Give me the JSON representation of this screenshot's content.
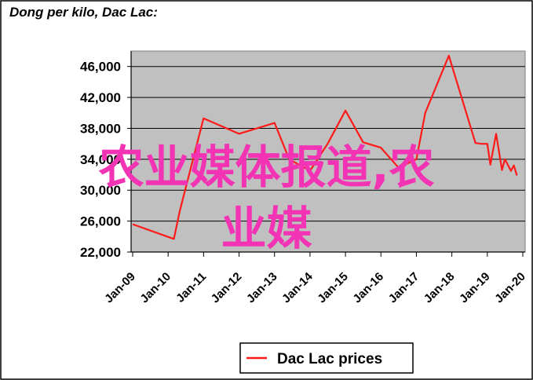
{
  "title": "Dong per kilo, Dac Lac:",
  "overlay": {
    "line1": "农业媒体报道,农",
    "line2": "业媒"
  },
  "chart_data": {
    "type": "line",
    "title": "Dong per kilo, Dac Lac:",
    "xlabel": "",
    "ylabel": "",
    "ylim": [
      22000,
      48000
    ],
    "y_ticks": [
      "22,000",
      "26,000",
      "30,000",
      "34,000",
      "38,000",
      "42,000",
      "46,000"
    ],
    "y_tick_values": [
      22000,
      26000,
      30000,
      34000,
      38000,
      42000,
      46000
    ],
    "x_ticks": [
      "Jan-09",
      "Jan-10",
      "Jan-11",
      "Jan-12",
      "Jan-13",
      "Jan-14",
      "Jan-15",
      "Jan-16",
      "Jan-17",
      "Jan-18",
      "Jan-19",
      "Jan-20"
    ],
    "legend_position": "bottom",
    "grid": true,
    "series": [
      {
        "name": "Dac Lac prices",
        "color": "#ff1a1a",
        "points": [
          [
            "2009-01-01",
            25600
          ],
          [
            "2010-03-01",
            23700
          ],
          [
            "2010-05-01",
            27300
          ],
          [
            "2011-01-01",
            39300
          ],
          [
            "2012-01-01",
            37300
          ],
          [
            "2013-01-01",
            38700
          ],
          [
            "2013-06-01",
            34000
          ],
          [
            "2014-01-01",
            32500
          ],
          [
            "2014-07-01",
            36000
          ],
          [
            "2015-01-01",
            40300
          ],
          [
            "2015-07-01",
            36200
          ],
          [
            "2016-01-01",
            35500
          ],
          [
            "2016-07-01",
            32900
          ],
          [
            "2017-01-01",
            34000
          ],
          [
            "2017-04-01",
            40000
          ],
          [
            "2017-12-01",
            47400
          ],
          [
            "2018-09-01",
            36100
          ],
          [
            "2018-11-01",
            36000
          ],
          [
            "2019-01-01",
            36000
          ],
          [
            "2019-02-01",
            33300
          ],
          [
            "2019-04-01",
            37300
          ],
          [
            "2019-06-01",
            32600
          ],
          [
            "2019-07-01",
            34000
          ],
          [
            "2019-09-01",
            32500
          ],
          [
            "2019-10-01",
            33200
          ],
          [
            "2019-11-01",
            31900
          ]
        ]
      }
    ]
  },
  "colors": {
    "plot_background": "#c0c0c0",
    "grid": "#000000",
    "series": "#ff1a1a",
    "overlay_text": "#f233b4"
  }
}
